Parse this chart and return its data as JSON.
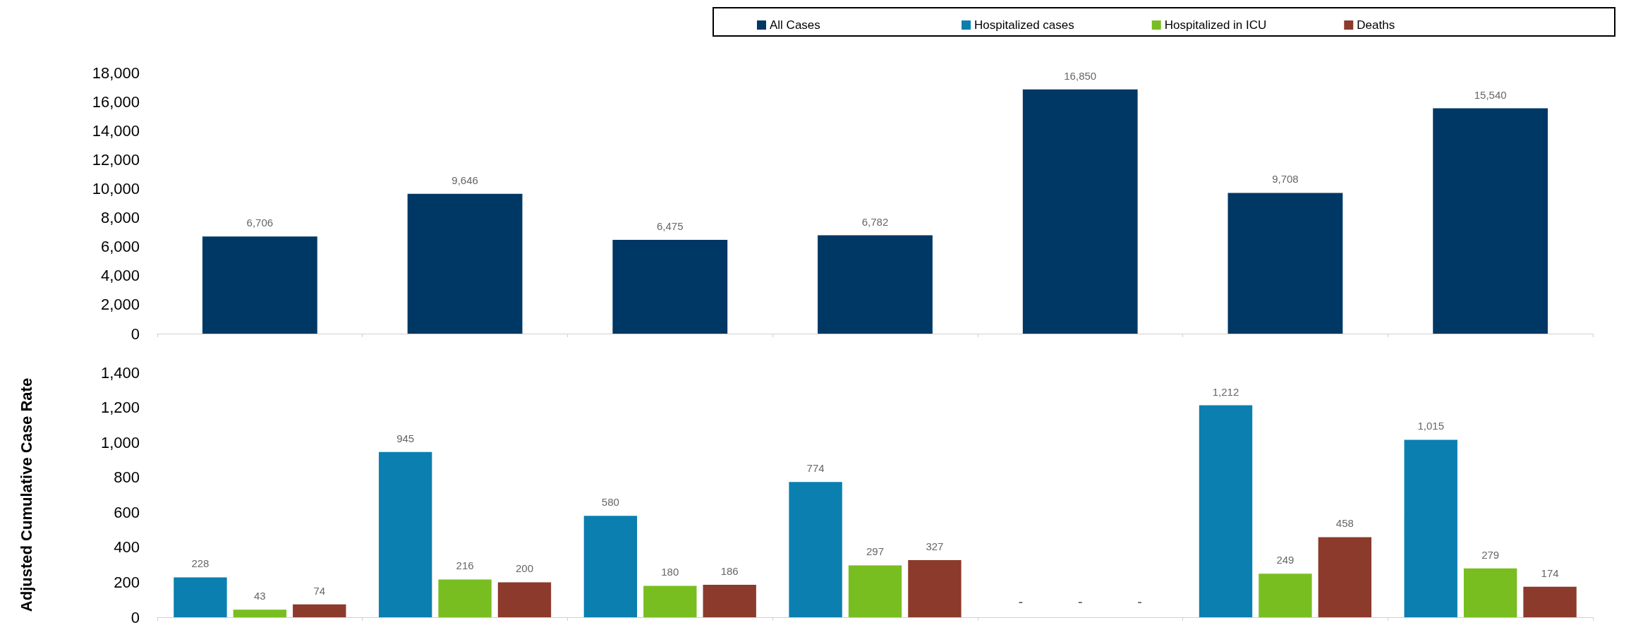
{
  "chart_data": [
    {
      "type": "bar",
      "categories": [
        null,
        null,
        null,
        null,
        null,
        null,
        null
      ],
      "series": [
        {
          "name": "All Cases",
          "color": "#003865",
          "values": [
            6706,
            9646,
            6475,
            6782,
            16850,
            9708,
            15540
          ],
          "value_labels": [
            "6,706",
            "9,646",
            "6,475",
            "6,782",
            "16,850",
            "9,708",
            "15,540"
          ]
        }
      ],
      "ylim": [
        0,
        18000
      ],
      "yticks": [
        0,
        {
          "value": 2000,
          "label": "2,000"
        },
        {
          "value": 4000,
          "label": "4,000"
        },
        {
          "value": 6000,
          "label": "6,000"
        },
        {
          "value": 8000,
          "label": "8,000"
        },
        {
          "value": 10000,
          "label": "10,000"
        },
        {
          "value": 12000,
          "label": "12,000"
        },
        {
          "value": 14000,
          "label": "14,000"
        },
        {
          "value": 16000,
          "label": "16,000"
        },
        {
          "value": 18000,
          "label": "18,000"
        }
      ],
      "legend": "top",
      "grid": false
    },
    {
      "type": "bar",
      "ylabel": "Adjusted Cumulative Case Rate",
      "categories": [
        null,
        null,
        null,
        null,
        null,
        null,
        null
      ],
      "series": [
        {
          "name": "Hospitalized cases",
          "color": "#0a7fb0",
          "values": [
            228,
            945,
            580,
            774,
            null,
            1212,
            1015
          ],
          "value_labels": [
            "228",
            "945",
            "580",
            "774",
            "-",
            "1,212",
            "1,015"
          ]
        },
        {
          "name": "Hospitalized in ICU",
          "color": "#78be21",
          "values": [
            43,
            216,
            180,
            297,
            null,
            249,
            279
          ],
          "value_labels": [
            "43",
            "216",
            "180",
            "297",
            "-",
            "249",
            "279"
          ]
        },
        {
          "name": "Deaths",
          "color": "#8b3a2b",
          "values": [
            74,
            200,
            186,
            327,
            null,
            458,
            174
          ],
          "value_labels": [
            "74",
            "200",
            "186",
            "327",
            "-",
            "458",
            "174"
          ]
        }
      ],
      "ylim": [
        0,
        1400
      ],
      "yticks": [
        0,
        200,
        400,
        600,
        800,
        {
          "value": 1000,
          "label": "1,000"
        },
        {
          "value": 1200,
          "label": "1,200"
        },
        {
          "value": 1400,
          "label": "1,400"
        }
      ],
      "legend": "top right",
      "grid": false
    }
  ]
}
